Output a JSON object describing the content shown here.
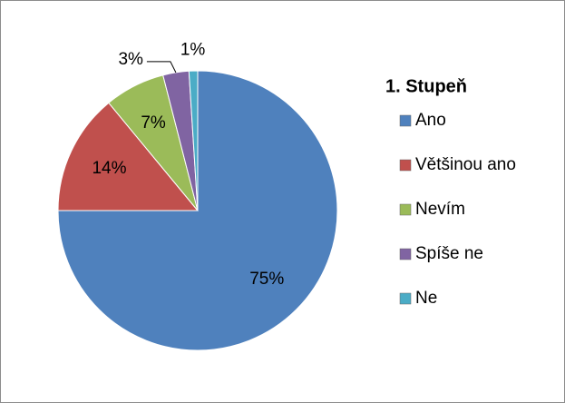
{
  "chart_data": {
    "type": "pie",
    "legend_title": "1. Stupeň",
    "categories": [
      "Ano",
      "Většinou ano",
      "Nevím",
      "Spíše ne",
      "Ne"
    ],
    "values": [
      75,
      14,
      7,
      3,
      1
    ],
    "value_labels": [
      "75%",
      "14%",
      "7%",
      "3%",
      "1%"
    ],
    "colors": [
      "#4f81bd",
      "#c0504d",
      "#9bbb59",
      "#8064a2",
      "#4bacc6"
    ],
    "legend": "right"
  }
}
